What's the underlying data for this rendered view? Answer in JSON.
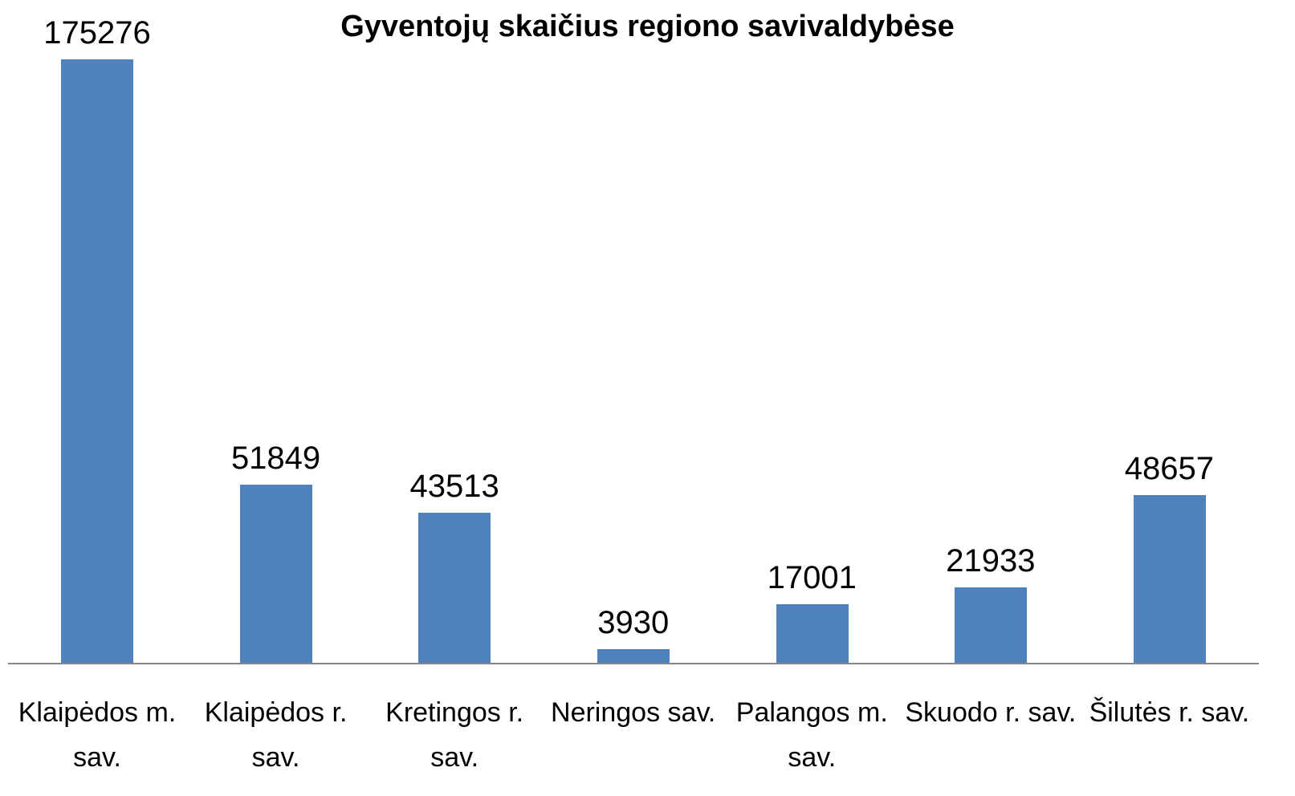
{
  "chart_data": {
    "type": "bar",
    "title": "Gyventojų skaičius regiono savivaldybėse",
    "categories": [
      "Klaipėdos m. sav.",
      "Klaipėdos r. sav.",
      "Kretingos r. sav.",
      "Neringos sav.",
      "Palangos m. sav.",
      "Skuodo r. sav.",
      "Šilutės r. sav."
    ],
    "values": [
      175276,
      51849,
      43513,
      3930,
      17001,
      21933,
      48657
    ],
    "color": "#4f81bd",
    "ylim": [
      0,
      180000
    ]
  }
}
